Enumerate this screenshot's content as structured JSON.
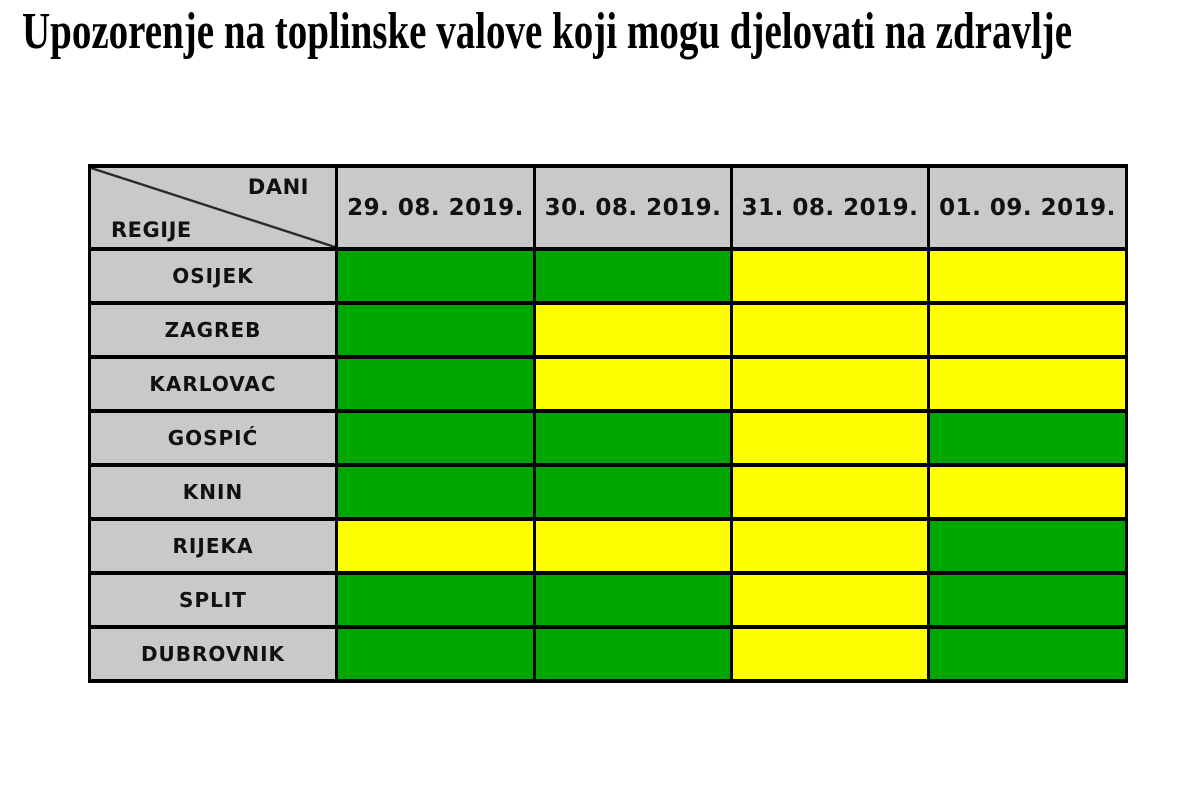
{
  "title": "Upozorenje na toplinske valove koji mogu djelovati na zdravlje",
  "corner": {
    "days_label": "DANI",
    "regions_label": "REGIJE"
  },
  "chart_data": {
    "type": "heatmap",
    "title": "Upozorenje na toplinske valove koji mogu djelovati na zdravlje",
    "x_categories": [
      "29. 08. 2019.",
      "30. 08. 2019.",
      "31. 08. 2019.",
      "01. 09. 2019."
    ],
    "y_categories": [
      "OSIJEK",
      "ZAGREB",
      "KARLOVAC",
      "GOSPIĆ",
      "KNIN",
      "RIJEKA",
      "SPLIT",
      "DUBROVNIK"
    ],
    "values": [
      [
        "green",
        "green",
        "yellow",
        "yellow"
      ],
      [
        "green",
        "yellow",
        "yellow",
        "yellow"
      ],
      [
        "green",
        "yellow",
        "yellow",
        "yellow"
      ],
      [
        "green",
        "green",
        "yellow",
        "green"
      ],
      [
        "green",
        "green",
        "yellow",
        "yellow"
      ],
      [
        "yellow",
        "yellow",
        "yellow",
        "green"
      ],
      [
        "green",
        "green",
        "yellow",
        "green"
      ],
      [
        "green",
        "green",
        "yellow",
        "green"
      ]
    ],
    "colors": {
      "green": "#00A600",
      "yellow": "#FFFF00"
    }
  },
  "style": {
    "header_bg": "#C9C9C9",
    "border_color": "#000000",
    "title_color": "#000000",
    "background": "#FFFFFF"
  }
}
